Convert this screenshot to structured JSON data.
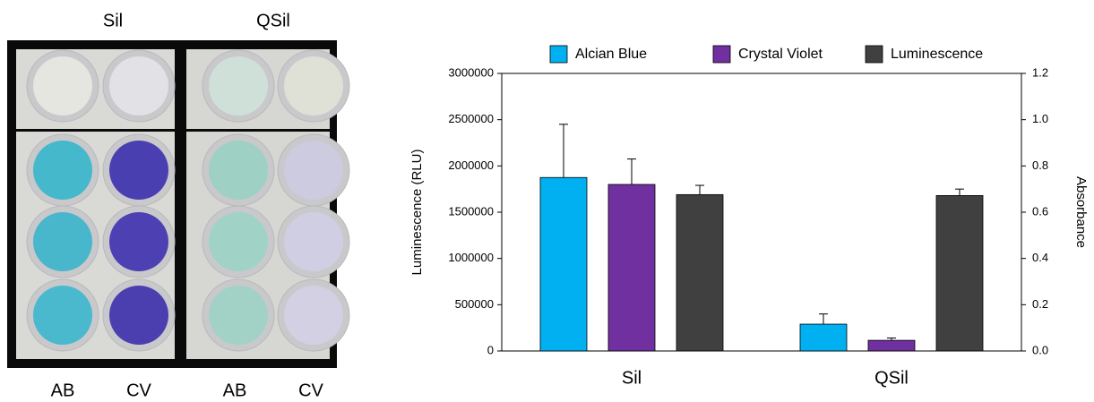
{
  "plate": {
    "top_labels": [
      "Sil",
      "QSil"
    ],
    "bottom_labels": [
      "AB",
      "CV",
      "AB",
      "CV"
    ]
  },
  "chart_data": {
    "type": "bar",
    "categories": [
      "Sil",
      "QSil"
    ],
    "series": [
      {
        "name": "Alcian Blue",
        "color": "#00b0f0",
        "axis": "y2",
        "values": [
          0.75,
          0.116
        ],
        "errors": [
          0.23,
          0.044
        ]
      },
      {
        "name": "Crystal Violet",
        "color": "#7030a0",
        "axis": "y2",
        "values": [
          0.72,
          0.046
        ],
        "errors": [
          0.11,
          0.01
        ]
      },
      {
        "name": "Luminescence",
        "color": "#404040",
        "values": [
          1690000,
          1680000
        ],
        "errors": [
          100000,
          70000
        ]
      }
    ],
    "y_label": "Luminescence (RLU)",
    "y2_label": "Absorbance",
    "ylim": [
      0,
      3000000
    ],
    "yticks": [
      0,
      500000,
      1000000,
      1500000,
      2000000,
      2500000,
      3000000
    ],
    "y2lim": [
      0,
      1.2
    ],
    "y2ticks": [
      {
        "value": 0,
        "label": "0.0"
      },
      0.2,
      0.4,
      0.6,
      0.8,
      {
        "value": 1,
        "label": "1.0"
      },
      1.2
    ],
    "legend": "top",
    "grid": false
  }
}
